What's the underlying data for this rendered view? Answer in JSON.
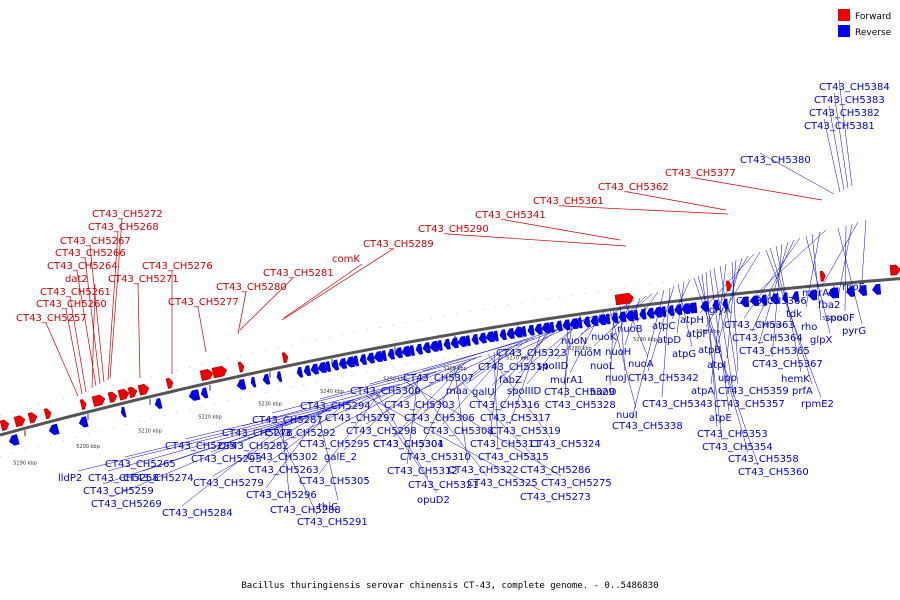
{
  "legend": {
    "forward": {
      "label": "Forward",
      "color": "#ee0000"
    },
    "reverse": {
      "label": "Reverse",
      "color": "#0000ee"
    }
  },
  "caption": "Bacillus thuringiensis serovar chinensis CT-43, complete genome. - 0..5486830",
  "scale_ticks": [
    "5190 kbp",
    "5200 kbp",
    "5210 kbp",
    "5220 kbp",
    "5230 kbp",
    "5240 kbp",
    "5250 kbp",
    "5260 kbp",
    "5270 kbp",
    "5280 kbp",
    "5290 kbp",
    "5300 kbp",
    "5310 kbp",
    "5320 kbp"
  ],
  "forward_labels": [
    "CT43_CH5272",
    "CT43_CH5268",
    "CT43_CH5267",
    "CT43_CH5266",
    "CT43_CH5264",
    "dat2",
    "CT43_CH5261",
    "CT43_CH5260",
    "CT43_CH5257",
    "CT43_CH5276",
    "CT43_CH5271",
    "CT43_CH5277",
    "CT43_CH5280",
    "CT43_CH5281",
    "CT43_CH5289",
    "comK",
    "CT43_CH5290",
    "CT43_CH5341",
    "CT43_CH5361",
    "CT43_CH5362",
    "CT43_CH5377"
  ],
  "reverse_labels": [
    "CT43_CH5384",
    "CT43_CH5383",
    "CT43_CH5382",
    "CT43_CH5381",
    "CT43_CH5380",
    "rpoE",
    "murA2",
    "fba2",
    "spo0F",
    "pyrG",
    "CT43_CH5366",
    "tdk",
    "rho",
    "glpX",
    "CT43_CH5363",
    "CT43_CH5364",
    "CT43_CH5365",
    "CT43_CH5367",
    "hemK",
    "prfA",
    "rpmE2",
    "glyA",
    "atpH",
    "atpF",
    "atpB",
    "atpI",
    "upp",
    "atpA",
    "CT43_CH5359",
    "CT43_CH5357",
    "atpE",
    "CT43_CH5353",
    "CT43_CH5354",
    "CT43_CH5358",
    "CT43_CH5360",
    "atpC",
    "atpD",
    "atpG",
    "CT43_CH5342",
    "CT43_CH5343",
    "CT43_CH5338",
    "nuoB",
    "nuoK",
    "nuoM",
    "nuoH",
    "nuoN",
    "nuoL",
    "nuoA",
    "nuoJ",
    "nuoD",
    "nuoI",
    "spoIID",
    "murA1",
    "CT43_CH5323",
    "CT43_CH5314",
    "fabZ",
    "spoIIID",
    "CT43_CH5329",
    "CT43_CH5328",
    "CT43_CH5307",
    "galU",
    "CT43_CH5316",
    "CT43_CH5317",
    "CT43_CH5319",
    "CT43_CH5300",
    "maa",
    "CT43_CH5303",
    "CT43_CH5306",
    "CT43_CH5308",
    "CT43_CH5301",
    "CT43_CH5311",
    "CT43_CH5315",
    "CT43_CH5324",
    "CT43_CH5294",
    "CT43_CH5297",
    "CT43_CH5298",
    "CT43_CH5304",
    "CT43_CH5310",
    "CT43_CH5322",
    "CT43_CH5286",
    "CT43_CH5287",
    "CT43_CH5292",
    "CT43_CH5295",
    "galE_2",
    "CT43_CH5312",
    "CT43_CH5325",
    "CT43_CH5275",
    "CT43_CH5278",
    "CT43_CH5282",
    "CT43_CH5302",
    "CT43_CH5305",
    "CT43_CH5321",
    "opuD2",
    "CT43_CH5273",
    "CT43_CH5285",
    "CT43_CH5293",
    "CT43_CH5263",
    "CT43_CH5265",
    "CT43_CH5274",
    "CT43_CH5279",
    "CT43_CH5296",
    "thiC",
    "lldP2",
    "CT43_CH5258",
    "CT43_CH5259",
    "CT43_CH5269",
    "CT43_CH5284",
    "CT43_CH5288",
    "CT43_CH5291"
  ]
}
